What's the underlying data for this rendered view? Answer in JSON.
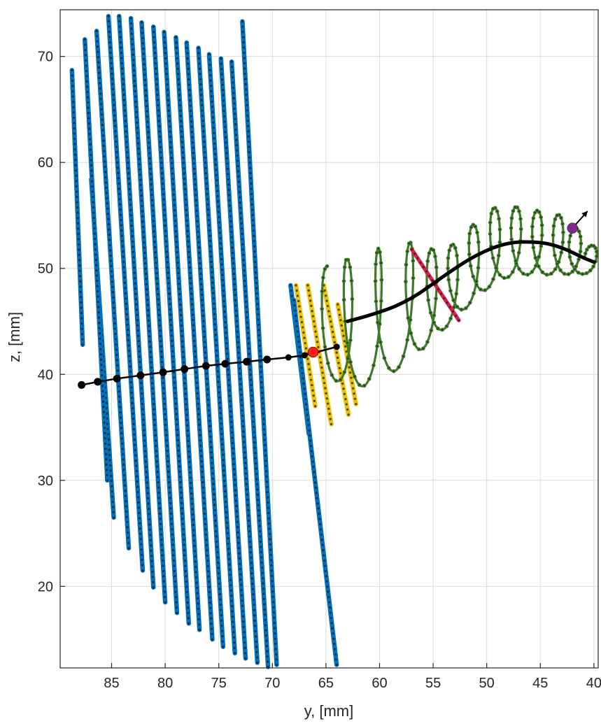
{
  "chart_data": {
    "type": "scatter",
    "xlabel": "y, [mm]",
    "ylabel": "z, [mm]",
    "xlim": [
      89.8,
      39.6
    ],
    "ylim": [
      12.3,
      74.4
    ],
    "x_reversed": true,
    "grid": true,
    "xticks": [
      85,
      80,
      75,
      70,
      65,
      60,
      55,
      50,
      45,
      40
    ],
    "yticks": [
      20,
      30,
      40,
      50,
      60,
      70
    ],
    "xtick_labels": [
      "85",
      "80",
      "75",
      "70",
      "65",
      "60",
      "55",
      "50",
      "45",
      "40"
    ],
    "ytick_labels": [
      "20",
      "30",
      "40",
      "50",
      "60",
      "70"
    ],
    "colors": {
      "blue": "#0072bd",
      "yellow": "#edc400",
      "green": "#3f7a2a",
      "red_section": "#d6214a",
      "red_marker": "#ff1a1a",
      "purple_marker": "#7e2f8e",
      "path": "#000000",
      "dot": "#111111"
    },
    "series": [
      {
        "color": "blue",
        "kind": "zigzag_columns",
        "strokes": [
          {
            "x1": 88.7,
            "z1": 68.7,
            "x2": 87.7,
            "z2": 42.8
          },
          {
            "x1": 86.9,
            "z1": 58.4,
            "x2": 84.8,
            "z2": 26.5
          },
          {
            "x1": 87.5,
            "z1": 71.6,
            "x2": 85.4,
            "z2": 30.0
          },
          {
            "x1": 86.4,
            "z1": 72.4,
            "x2": 83.4,
            "z2": 23.6
          },
          {
            "x1": 85.3,
            "z1": 73.8,
            "x2": 82.1,
            "z2": 21.5
          },
          {
            "x1": 84.3,
            "z1": 73.8,
            "x2": 81.1,
            "z2": 19.9
          },
          {
            "x1": 83.2,
            "z1": 73.6,
            "x2": 80.0,
            "z2": 18.5
          },
          {
            "x1": 82.2,
            "z1": 73.2,
            "x2": 78.9,
            "z2": 17.5
          },
          {
            "x1": 81.1,
            "z1": 72.8,
            "x2": 77.8,
            "z2": 16.5
          },
          {
            "x1": 80.1,
            "z1": 72.3,
            "x2": 76.8,
            "z2": 15.9
          },
          {
            "x1": 79.0,
            "z1": 71.8,
            "x2": 75.6,
            "z2": 15.0
          },
          {
            "x1": 78.0,
            "z1": 71.3,
            "x2": 74.6,
            "z2": 14.3
          },
          {
            "x1": 76.9,
            "z1": 70.8,
            "x2": 73.5,
            "z2": 13.7
          },
          {
            "x1": 75.9,
            "z1": 70.2,
            "x2": 72.5,
            "z2": 13.2
          },
          {
            "x1": 74.8,
            "z1": 69.8,
            "x2": 71.4,
            "z2": 12.8
          },
          {
            "x1": 73.8,
            "z1": 69.5,
            "x2": 70.4,
            "z2": 12.4
          },
          {
            "x1": 72.8,
            "z1": 73.3,
            "x2": 69.6,
            "z2": 12.6
          },
          {
            "x1": 68.3,
            "z1": 48.4,
            "x2": 66.6,
            "z2": 34.4
          },
          {
            "x1": 68.0,
            "z1": 47.0,
            "x2": 64.0,
            "z2": 12.6
          }
        ]
      },
      {
        "color": "yellow",
        "kind": "zigzag_columns",
        "strokes": [
          {
            "x1": 67.8,
            "z1": 48.4,
            "x2": 66.0,
            "z2": 37.0
          },
          {
            "x1": 66.7,
            "z1": 48.4,
            "x2": 64.5,
            "z2": 35.3
          },
          {
            "x1": 65.2,
            "z1": 48.4,
            "x2": 62.9,
            "z2": 36.2
          },
          {
            "x1": 63.9,
            "z1": 46.6,
            "x2": 62.2,
            "z2": 37.2
          }
        ]
      },
      {
        "color": "green",
        "kind": "helix",
        "path": [
          [
            64.9,
            45.2
          ],
          [
            63.0,
            44.7
          ],
          [
            60.0,
            45.6
          ],
          [
            57.0,
            47.0
          ],
          [
            55.0,
            47.6
          ],
          [
            53.0,
            48.8
          ],
          [
            51.0,
            50.8
          ],
          [
            49.0,
            52.4
          ],
          [
            47.0,
            52.6
          ],
          [
            45.0,
            52.4
          ],
          [
            43.0,
            52.2
          ],
          [
            41.5,
            51.5
          ],
          [
            40.0,
            50.6
          ]
        ],
        "amplitude": [
          5.0,
          6.2,
          6.3,
          5.5,
          4.2,
          3.5,
          3.5,
          3.5,
          3.2,
          3.0,
          2.8,
          2.0,
          1.2
        ],
        "turns": 12.2
      },
      {
        "color": "red_section",
        "kind": "segment",
        "points": [
          [
            57.0,
            51.8
          ],
          [
            52.6,
            45.1
          ]
        ]
      },
      {
        "color": "path",
        "kind": "centerline_large_dots",
        "points": [
          [
            87.8,
            39.0
          ],
          [
            86.3,
            39.3
          ],
          [
            84.5,
            39.6
          ],
          [
            82.3,
            39.9
          ],
          [
            80.2,
            40.2
          ],
          [
            78.2,
            40.5
          ],
          [
            76.2,
            40.8
          ],
          [
            74.4,
            41.0
          ],
          [
            72.4,
            41.2
          ],
          [
            70.5,
            41.4
          ],
          [
            68.5,
            41.6
          ],
          [
            67.0,
            41.8
          ],
          [
            64.0,
            42.6
          ]
        ]
      },
      {
        "color": "path",
        "kind": "centerline",
        "points": [
          [
            63.0,
            45.0
          ],
          [
            60.0,
            45.8
          ],
          [
            57.0,
            47.1
          ],
          [
            54.0,
            49.3
          ],
          [
            51.0,
            51.3
          ],
          [
            48.0,
            52.5
          ],
          [
            45.0,
            52.5
          ],
          [
            43.0,
            52.0
          ],
          [
            41.0,
            51.0
          ],
          [
            40.0,
            50.6
          ]
        ]
      }
    ],
    "markers": [
      {
        "color": "red_marker",
        "x": 66.2,
        "z": 42.1
      },
      {
        "color": "purple_marker",
        "x": 42.0,
        "z": 53.8
      }
    ],
    "arrow": {
      "color": "path",
      "from": [
        42.0,
        53.8
      ],
      "to": [
        40.6,
        55.4
      ]
    }
  }
}
